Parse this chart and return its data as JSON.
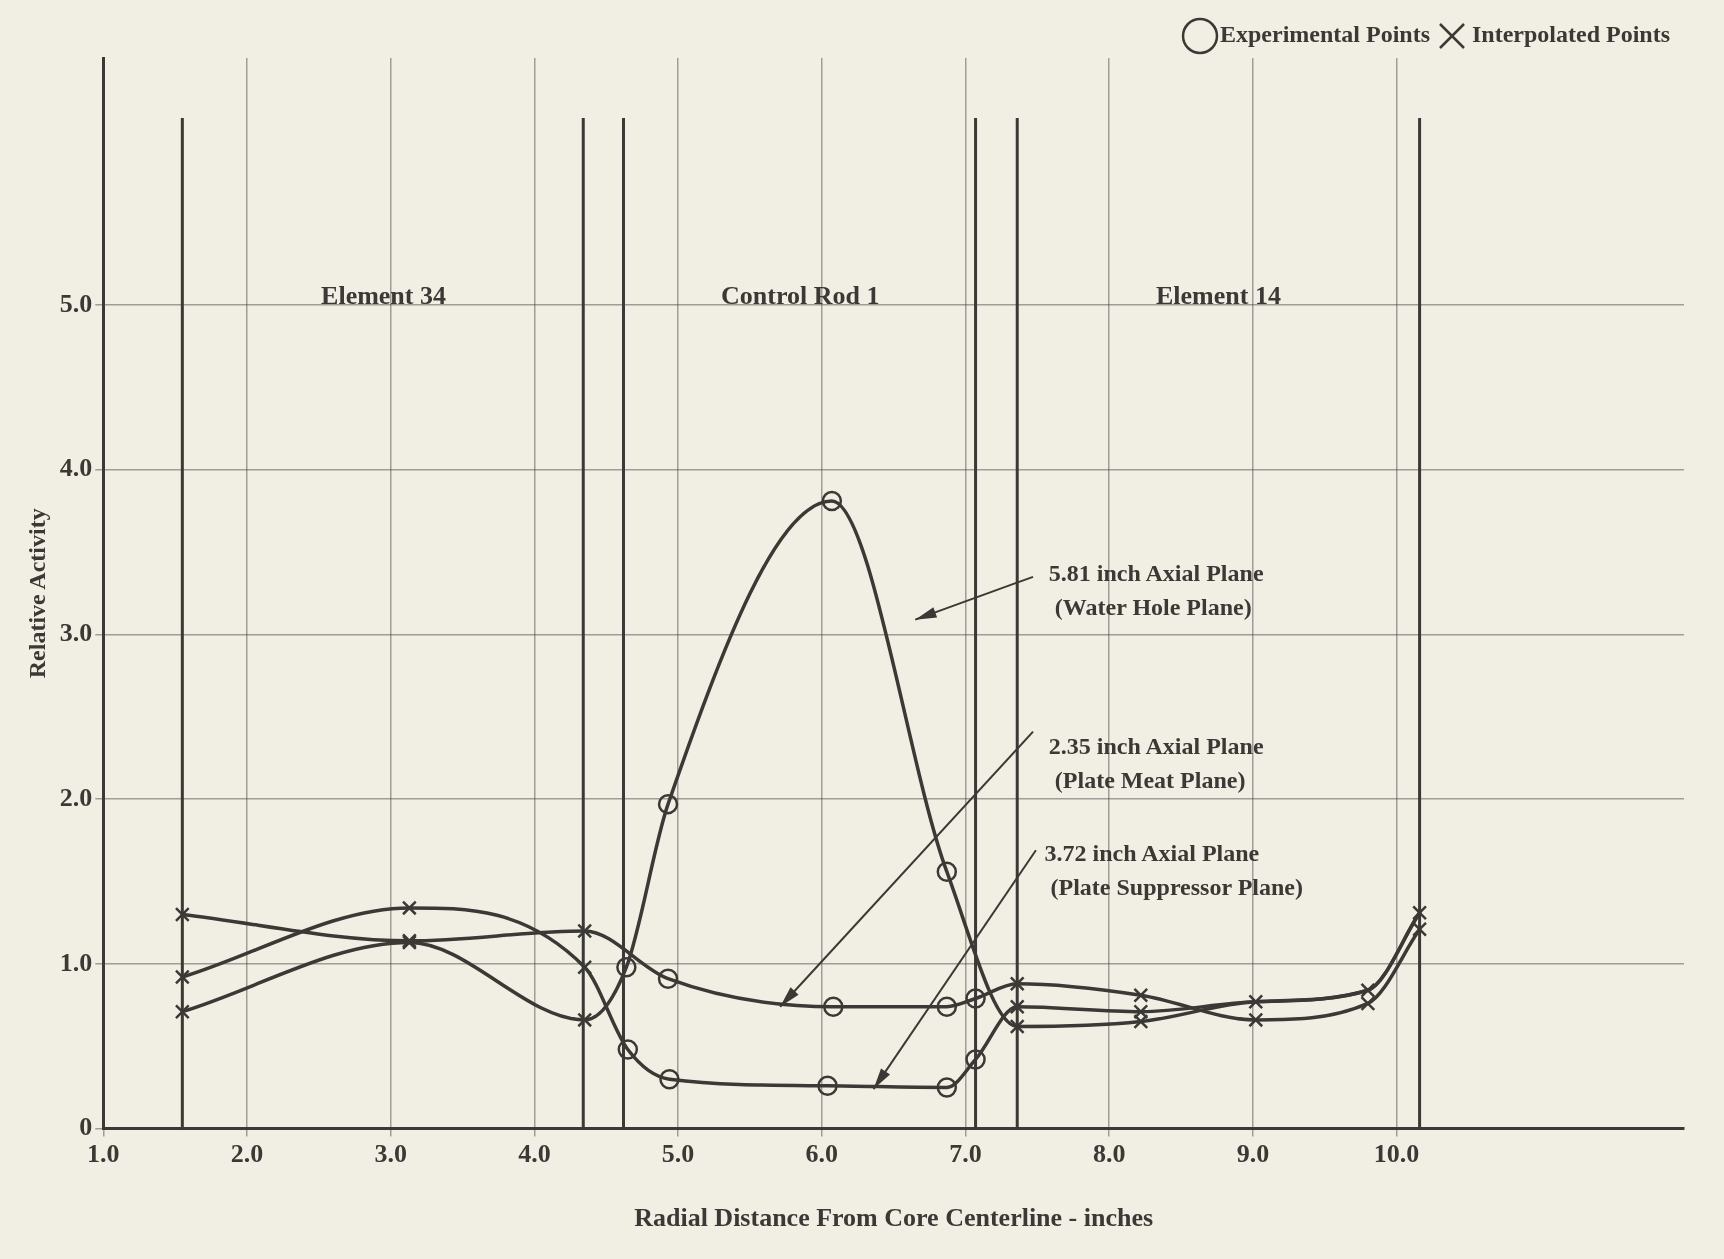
{
  "chart_data": {
    "type": "line",
    "xlabel": "Radial Distance From Core Centerline - inches",
    "ylabel": "Relative Activity",
    "xlim": [
      1,
      12
    ],
    "ylim": [
      0,
      6.5
    ],
    "xticks": [
      {
        "value": 1,
        "label": "1.0"
      },
      {
        "value": 2,
        "label": "2.0"
      },
      {
        "value": 3,
        "label": "3.0"
      },
      {
        "value": 4,
        "label": "4.0"
      },
      {
        "value": 5,
        "label": "5.0"
      },
      {
        "value": 6,
        "label": "6.0"
      },
      {
        "value": 7,
        "label": "7.0"
      },
      {
        "value": 8,
        "label": "8.0"
      },
      {
        "value": 9,
        "label": "9.0"
      },
      {
        "value": 10,
        "label": "10.0"
      }
    ],
    "yticks": [
      0,
      {
        "value": 1,
        "label": "1.0"
      },
      {
        "value": 2,
        "label": "2.0"
      },
      {
        "value": 3,
        "label": "3.0"
      },
      {
        "value": 4,
        "label": "4.0"
      },
      {
        "value": 5,
        "label": "5.0"
      }
    ],
    "grid": true,
    "legend": "top right",
    "line_style": "solid",
    "ref_lines": [
      {
        "axis": "x",
        "value": 1.55,
        "color": "#3b3935"
      },
      {
        "axis": "x",
        "value": 4.34,
        "color": "#3b3935"
      },
      {
        "axis": "x",
        "value": 4.62,
        "color": "#3b3935"
      },
      {
        "axis": "x",
        "value": 7.07,
        "color": "#3b3935"
      },
      {
        "axis": "x",
        "value": 7.36,
        "color": "#3b3935"
      },
      {
        "axis": "x",
        "value": 10.16,
        "color": "#3b3935"
      }
    ],
    "annotations": [
      "Element 34",
      "Control Rod 1",
      "Element 14"
    ],
    "series": [
      {
        "name": "5.81 inch Axial Plane (Water Hole Plane)",
        "marker": "none",
        "color": "#3b3935",
        "x": [
          1.55,
          3.13,
          4.35,
          4.64,
          4.93,
          6.07,
          6.87,
          7.36,
          8.22,
          9.02,
          9.8,
          10.16
        ],
        "values": [
          0.71,
          1.13,
          0.66,
          0.98,
          1.97,
          3.81,
          1.56,
          0.62,
          0.65,
          0.77,
          0.84,
          1.31
        ]
      },
      {
        "name": "2.35 inch Axial Plane (Plate Meat Plane)",
        "marker": "none",
        "color": "#3b3935",
        "x": [
          1.55,
          3.13,
          4.35,
          4.93,
          6.08,
          6.87,
          7.07,
          7.36,
          8.22,
          9.02,
          9.8,
          10.16
        ],
        "values": [
          1.3,
          1.14,
          1.2,
          0.91,
          0.74,
          0.74,
          0.79,
          0.88,
          0.81,
          0.66,
          0.76,
          1.21
        ]
      },
      {
        "name": "3.72 inch Axial Plane (Plate Suppressor Plane)",
        "marker": "none",
        "color": "#3b3935",
        "x": [
          1.55,
          3.13,
          4.35,
          4.65,
          4.94,
          6.04,
          6.87,
          7.07,
          7.36,
          8.22,
          9.02,
          9.8,
          10.16
        ],
        "values": [
          0.92,
          1.34,
          0.98,
          0.48,
          0.3,
          0.26,
          0.25,
          0.42,
          0.74,
          0.71,
          0.77,
          0.84,
          1.31
        ]
      },
      {
        "name": "Experimental Points",
        "type": "scatter",
        "marker": "circle",
        "color": "#3b3935",
        "x": [
          4.64,
          4.65,
          4.93,
          4.93,
          4.94,
          6.04,
          6.07,
          6.08,
          6.87,
          6.87,
          6.87,
          7.07,
          7.07
        ],
        "values": [
          0.98,
          0.48,
          1.97,
          0.91,
          0.3,
          0.26,
          3.81,
          0.74,
          1.56,
          0.74,
          0.25,
          0.79,
          0.42
        ]
      },
      {
        "name": "Interpolated Points",
        "type": "scatter",
        "marker": "cross",
        "color": "#3b3935",
        "x": [
          1.55,
          1.55,
          1.55,
          3.13,
          3.13,
          3.13,
          4.35,
          4.35,
          4.35,
          7.36,
          7.36,
          7.36,
          8.22,
          8.22,
          8.22,
          9.02,
          9.02,
          9.8,
          9.8,
          10.16,
          10.16
        ],
        "values": [
          1.3,
          0.92,
          0.71,
          1.34,
          1.14,
          1.13,
          1.2,
          0.98,
          0.66,
          0.88,
          0.74,
          0.62,
          0.81,
          0.71,
          0.65,
          0.77,
          0.66,
          0.84,
          0.76,
          1.31,
          1.21
        ]
      }
    ]
  }
}
